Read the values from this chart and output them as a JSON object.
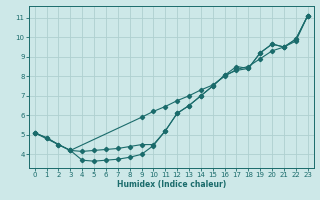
{
  "xlabel": "Humidex (Indice chaleur)",
  "background_color": "#cde8e8",
  "grid_color": "#afd0d0",
  "line_color": "#1a6b6b",
  "xlim": [
    -0.5,
    23.5
  ],
  "ylim": [
    3.3,
    11.6
  ],
  "yticks": [
    4,
    5,
    6,
    7,
    8,
    9,
    10,
    11
  ],
  "xticks": [
    0,
    1,
    2,
    3,
    4,
    5,
    6,
    7,
    8,
    9,
    10,
    11,
    12,
    13,
    14,
    15,
    16,
    17,
    18,
    19,
    20,
    21,
    22,
    23
  ],
  "line1_x": [
    0,
    1,
    2,
    3,
    4,
    5,
    6,
    7,
    8,
    9,
    10,
    11,
    12,
    13,
    14,
    15,
    16,
    17,
    18,
    19,
    20,
    21,
    22,
    23
  ],
  "line1_y": [
    5.1,
    4.85,
    4.5,
    4.2,
    3.7,
    3.65,
    3.7,
    3.75,
    3.85,
    4.0,
    4.45,
    5.2,
    6.1,
    6.5,
    7.0,
    7.5,
    8.05,
    8.3,
    8.4,
    9.2,
    9.65,
    9.5,
    9.9,
    11.1
  ],
  "line2_x": [
    0,
    1,
    2,
    3,
    4,
    5,
    6,
    7,
    8,
    9,
    10,
    11,
    12,
    13,
    14,
    15,
    16,
    17,
    18,
    19,
    20,
    21,
    22,
    23
  ],
  "line2_y": [
    5.1,
    4.85,
    4.5,
    4.2,
    4.15,
    4.2,
    4.25,
    4.3,
    4.4,
    4.5,
    4.5,
    5.2,
    6.1,
    6.5,
    7.0,
    7.5,
    8.05,
    8.5,
    8.4,
    9.2,
    9.65,
    9.5,
    9.9,
    11.1
  ],
  "line3_x": [
    0,
    3,
    9,
    10,
    11,
    12,
    13,
    14,
    15,
    16,
    17,
    18,
    19,
    20,
    21,
    22,
    23
  ],
  "line3_y": [
    5.1,
    4.2,
    5.9,
    6.2,
    6.45,
    6.75,
    7.0,
    7.3,
    7.55,
    8.0,
    8.35,
    8.5,
    8.9,
    9.3,
    9.5,
    9.8,
    11.1
  ]
}
